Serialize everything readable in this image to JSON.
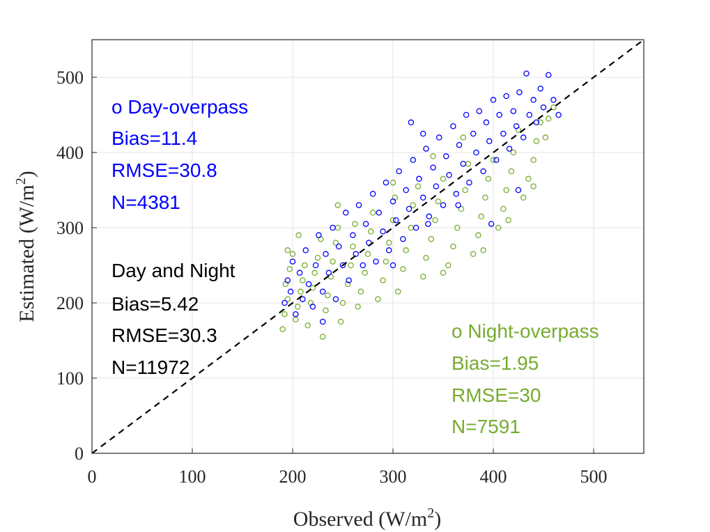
{
  "chart_data": {
    "type": "scatter",
    "xlabel": "Observed (W/m",
    "ylabel": "Estimated (W/m",
    "label_superscript": "2",
    "label_close": ")",
    "xlim": [
      0,
      550
    ],
    "ylim": [
      0,
      550
    ],
    "xticks": [
      0,
      100,
      200,
      300,
      400,
      500
    ],
    "yticks": [
      0,
      100,
      200,
      300,
      400,
      500
    ],
    "grid": true,
    "reference_line": {
      "type": "1:1",
      "style": "dashed",
      "color": "#000000"
    },
    "series": [
      {
        "name": "Night-overpass",
        "color": "#77AC30",
        "marker": "open-circle",
        "points": [
          [
            190,
            165
          ],
          [
            192,
            185
          ],
          [
            195,
            205
          ],
          [
            193,
            225
          ],
          [
            197,
            245
          ],
          [
            200,
            265
          ],
          [
            195,
            270
          ],
          [
            203,
            178
          ],
          [
            205,
            195
          ],
          [
            208,
            215
          ],
          [
            210,
            230
          ],
          [
            212,
            250
          ],
          [
            206,
            290
          ],
          [
            215,
            170
          ],
          [
            218,
            200
          ],
          [
            220,
            220
          ],
          [
            222,
            240
          ],
          [
            225,
            260
          ],
          [
            228,
            285
          ],
          [
            230,
            155
          ],
          [
            233,
            190
          ],
          [
            235,
            210
          ],
          [
            238,
            235
          ],
          [
            240,
            255
          ],
          [
            243,
            280
          ],
          [
            245,
            300
          ],
          [
            248,
            175
          ],
          [
            250,
            200
          ],
          [
            255,
            225
          ],
          [
            258,
            250
          ],
          [
            260,
            275
          ],
          [
            262,
            305
          ],
          [
            265,
            195
          ],
          [
            268,
            215
          ],
          [
            272,
            240
          ],
          [
            275,
            265
          ],
          [
            278,
            295
          ],
          [
            280,
            320
          ],
          [
            285,
            205
          ],
          [
            290,
            230
          ],
          [
            293,
            255
          ],
          [
            296,
            280
          ],
          [
            300,
            310
          ],
          [
            302,
            340
          ],
          [
            305,
            215
          ],
          [
            310,
            245
          ],
          [
            313,
            270
          ],
          [
            318,
            300
          ],
          [
            320,
            330
          ],
          [
            325,
            355
          ],
          [
            330,
            235
          ],
          [
            333,
            260
          ],
          [
            338,
            285
          ],
          [
            342,
            310
          ],
          [
            345,
            335
          ],
          [
            350,
            365
          ],
          [
            355,
            250
          ],
          [
            360,
            275
          ],
          [
            364,
            300
          ],
          [
            368,
            325
          ],
          [
            372,
            350
          ],
          [
            375,
            385
          ],
          [
            380,
            265
          ],
          [
            385,
            290
          ],
          [
            388,
            315
          ],
          [
            392,
            340
          ],
          [
            395,
            365
          ],
          [
            400,
            390
          ],
          [
            405,
            300
          ],
          [
            410,
            325
          ],
          [
            413,
            350
          ],
          [
            418,
            375
          ],
          [
            420,
            400
          ],
          [
            425,
            430
          ],
          [
            430,
            340
          ],
          [
            435,
            365
          ],
          [
            440,
            390
          ],
          [
            443,
            415
          ],
          [
            447,
            440
          ],
          [
            452,
            420
          ],
          [
            455,
            445
          ],
          [
            460,
            460
          ],
          [
            370,
            420
          ],
          [
            340,
            395
          ],
          [
            300,
            360
          ],
          [
            245,
            330
          ],
          [
            390,
            270
          ],
          [
            350,
            240
          ],
          [
            415,
            310
          ],
          [
            440,
            355
          ]
        ]
      },
      {
        "name": "Day-overpass",
        "color": "#0000FF",
        "marker": "open-circle",
        "points": [
          [
            192,
            200
          ],
          [
            195,
            230
          ],
          [
            198,
            215
          ],
          [
            200,
            255
          ],
          [
            203,
            185
          ],
          [
            207,
            240
          ],
          [
            210,
            205
          ],
          [
            213,
            270
          ],
          [
            216,
            225
          ],
          [
            220,
            195
          ],
          [
            223,
            250
          ],
          [
            226,
            290
          ],
          [
            230,
            215
          ],
          [
            233,
            265
          ],
          [
            236,
            240
          ],
          [
            240,
            300
          ],
          [
            243,
            205
          ],
          [
            246,
            275
          ],
          [
            250,
            250
          ],
          [
            253,
            320
          ],
          [
            256,
            230
          ],
          [
            260,
            290
          ],
          [
            263,
            265
          ],
          [
            266,
            330
          ],
          [
            270,
            250
          ],
          [
            273,
            305
          ],
          [
            276,
            280
          ],
          [
            280,
            345
          ],
          [
            283,
            255
          ],
          [
            286,
            320
          ],
          [
            290,
            295
          ],
          [
            293,
            360
          ],
          [
            296,
            270
          ],
          [
            300,
            335
          ],
          [
            303,
            310
          ],
          [
            306,
            375
          ],
          [
            310,
            285
          ],
          [
            313,
            350
          ],
          [
            316,
            325
          ],
          [
            320,
            390
          ],
          [
            323,
            300
          ],
          [
            326,
            365
          ],
          [
            330,
            340
          ],
          [
            333,
            405
          ],
          [
            336,
            315
          ],
          [
            340,
            380
          ],
          [
            343,
            355
          ],
          [
            346,
            420
          ],
          [
            350,
            330
          ],
          [
            353,
            395
          ],
          [
            356,
            370
          ],
          [
            360,
            435
          ],
          [
            363,
            345
          ],
          [
            366,
            410
          ],
          [
            370,
            385
          ],
          [
            373,
            450
          ],
          [
            376,
            360
          ],
          [
            380,
            425
          ],
          [
            383,
            400
          ],
          [
            386,
            455
          ],
          [
            390,
            375
          ],
          [
            393,
            440
          ],
          [
            396,
            415
          ],
          [
            400,
            470
          ],
          [
            403,
            390
          ],
          [
            406,
            450
          ],
          [
            410,
            425
          ],
          [
            413,
            475
          ],
          [
            416,
            405
          ],
          [
            420,
            455
          ],
          [
            423,
            435
          ],
          [
            426,
            480
          ],
          [
            430,
            420
          ],
          [
            433,
            505
          ],
          [
            436,
            450
          ],
          [
            440,
            470
          ],
          [
            443,
            440
          ],
          [
            447,
            485
          ],
          [
            450,
            460
          ],
          [
            455,
            503
          ],
          [
            460,
            470
          ],
          [
            465,
            450
          ],
          [
            318,
            440
          ],
          [
            330,
            425
          ],
          [
            398,
            305
          ],
          [
            425,
            350
          ],
          [
            365,
            330
          ],
          [
            230,
            175
          ],
          [
            335,
            305
          ],
          [
            300,
            250
          ]
        ]
      }
    ],
    "annotations": {
      "day": {
        "color": "#0000FF",
        "lines": [
          "o Day-overpass",
          "Bias=11.4",
          "RMSE=30.8",
          "N=4381"
        ]
      },
      "all": {
        "color": "#000000",
        "lines": [
          "Day and Night",
          "Bias=5.42",
          "RMSE=30.3",
          "N=11972"
        ]
      },
      "night": {
        "color": "#77AC30",
        "lines": [
          "o Night-overpass",
          "Bias=1.95",
          "RMSE=30",
          "N=7591"
        ]
      }
    }
  }
}
